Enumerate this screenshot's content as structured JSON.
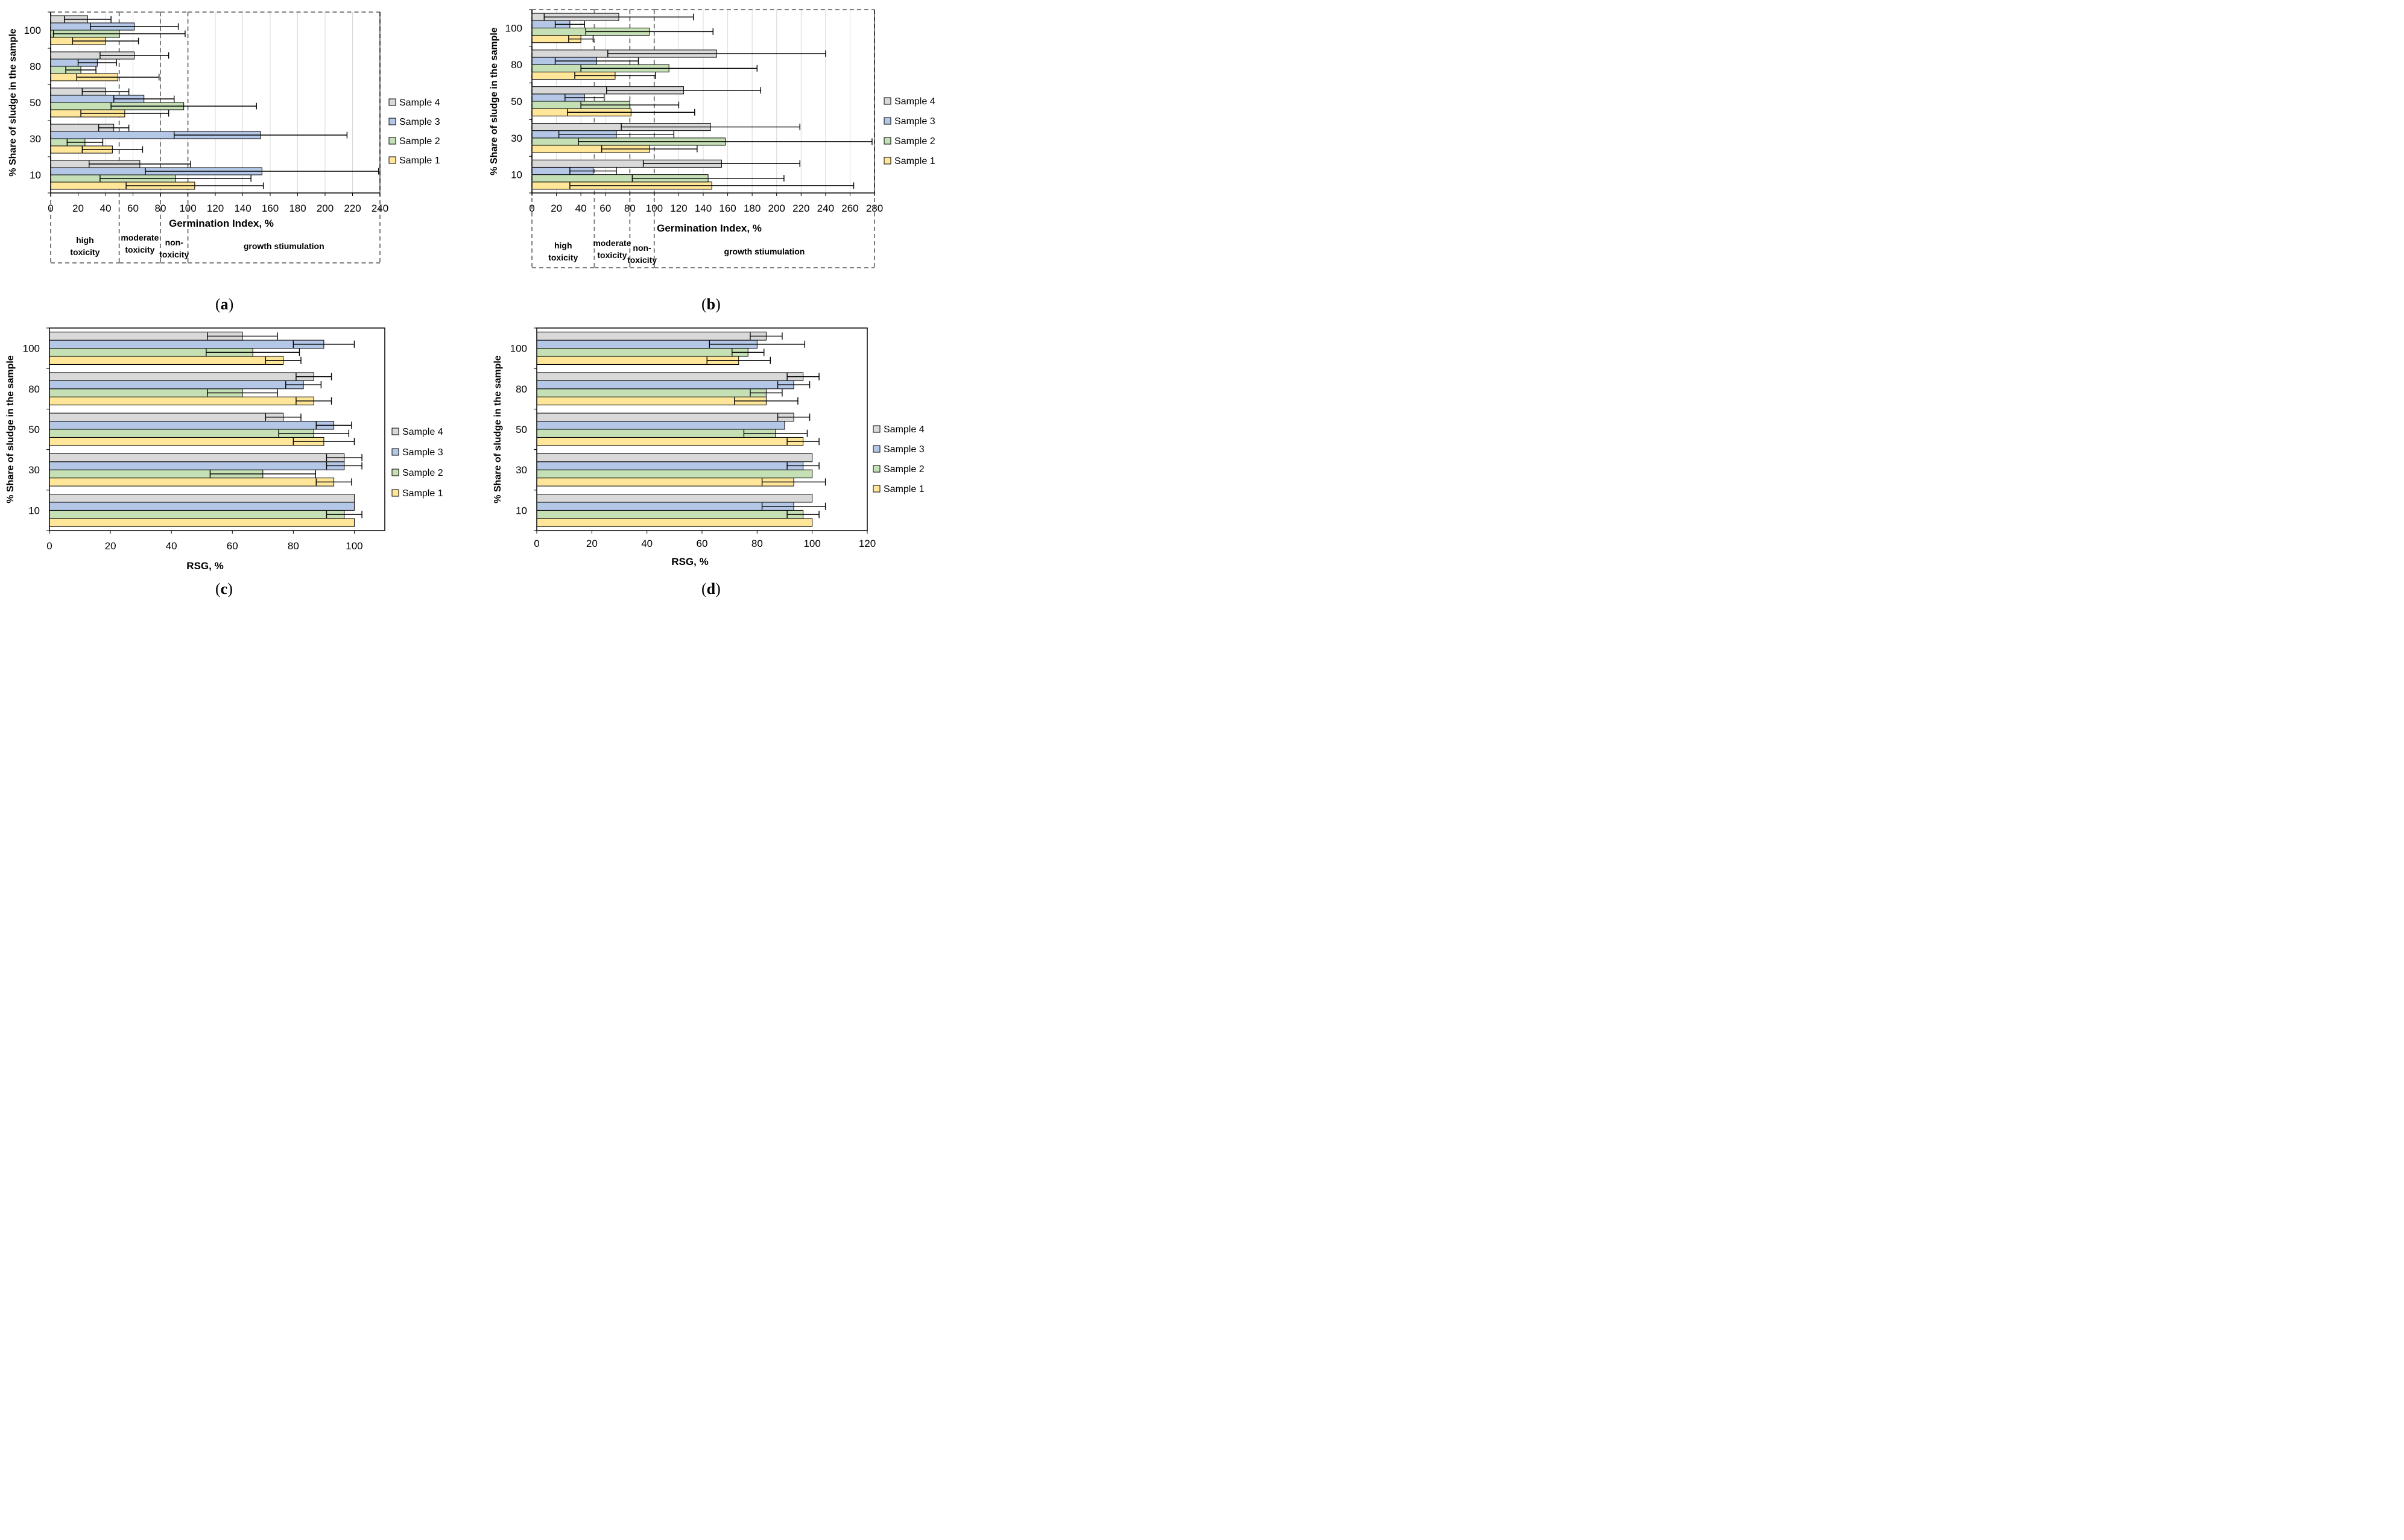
{
  "colors": {
    "sample1": "#FFE699",
    "sample2": "#C5E0B4",
    "sample3": "#B4C7E7",
    "sample4": "#D9D9D9",
    "stroke": "#000000",
    "grid": "#D9D9D9",
    "zone_border": "#7F7F7F"
  },
  "legend_labels": [
    "Sample 4",
    "Sample 3",
    "Sample 2",
    "Sample 1"
  ],
  "panels": [
    {
      "letter": "a",
      "open": "(",
      "close": ")"
    },
    {
      "letter": "b",
      "open": "(",
      "close": ")"
    },
    {
      "letter": "c",
      "open": "(",
      "close": ")"
    },
    {
      "letter": "d",
      "open": "(",
      "close": ")"
    }
  ],
  "chart_data": [
    {
      "type": "bar",
      "orientation": "horizontal",
      "panel": "a",
      "xlabel": "Germination Index, %",
      "ylabel": "% Share of sludge in the sample",
      "categories": [
        "10",
        "30",
        "50",
        "80",
        "100"
      ],
      "xlim": [
        0,
        240
      ],
      "xticks": [
        0,
        20,
        40,
        60,
        80,
        100,
        120,
        140,
        160,
        180,
        200,
        220,
        240
      ],
      "grid": true,
      "legend_position": "right",
      "zones": [
        {
          "label_lines": [
            "high",
            "toxicity"
          ],
          "from": 0,
          "to": 50
        },
        {
          "label_lines": [
            "moderate",
            "toxicity"
          ],
          "from": 50,
          "to": 80
        },
        {
          "label_lines": [
            "non-",
            "toxicity"
          ],
          "from": 80,
          "to": 100
        },
        {
          "label_lines": [
            "growth stiumulation"
          ],
          "from": 100,
          "to": 240
        }
      ],
      "series": [
        {
          "name": "Sample 1",
          "values": [
            105,
            45,
            54,
            49,
            40
          ],
          "errors": [
            50,
            22,
            32,
            30,
            24
          ]
        },
        {
          "name": "Sample 2",
          "values": [
            91,
            25,
            97,
            22,
            50
          ],
          "errors": [
            55,
            13,
            53,
            11,
            48
          ]
        },
        {
          "name": "Sample 3",
          "values": [
            154,
            153,
            68,
            34,
            61
          ],
          "errors": [
            85,
            63,
            22,
            14,
            32
          ]
        },
        {
          "name": "Sample 4",
          "values": [
            65,
            46,
            40,
            61,
            27
          ],
          "errors": [
            37,
            11,
            17,
            25,
            17
          ]
        }
      ]
    },
    {
      "type": "bar",
      "orientation": "horizontal",
      "panel": "b",
      "xlabel": "Germination Index, %",
      "ylabel": "% Share of sludge in the sample",
      "categories": [
        "10",
        "30",
        "50",
        "80",
        "100"
      ],
      "xlim": [
        0,
        280
      ],
      "xticks": [
        0,
        20,
        40,
        60,
        80,
        100,
        120,
        140,
        160,
        180,
        200,
        220,
        240,
        260,
        280
      ],
      "grid": true,
      "legend_position": "right",
      "zones": [
        {
          "label_lines": [
            "high",
            "toxicity"
          ],
          "from": 0,
          "to": 51
        },
        {
          "label_lines": [
            "moderate",
            "toxicity"
          ],
          "from": 51,
          "to": 80
        },
        {
          "label_lines": [
            "non-",
            "toxicity"
          ],
          "from": 80,
          "to": 100
        },
        {
          "label_lines": [
            "growth stiumulation"
          ],
          "from": 100,
          "to": 280
        }
      ],
      "series": [
        {
          "name": "Sample 1",
          "values": [
            147,
            96,
            81,
            68,
            40
          ],
          "errors": [
            116,
            39,
            52,
            33,
            10
          ]
        },
        {
          "name": "Sample 2",
          "values": [
            144,
            158,
            80,
            112,
            96
          ],
          "errors": [
            62,
            120,
            40,
            72,
            52
          ]
        },
        {
          "name": "Sample 3",
          "values": [
            50,
            69,
            43,
            53,
            31
          ],
          "errors": [
            19,
            47,
            16,
            34,
            12
          ]
        },
        {
          "name": "Sample 4",
          "values": [
            155,
            146,
            124,
            151,
            71
          ],
          "errors": [
            64,
            73,
            63,
            89,
            61
          ]
        }
      ]
    },
    {
      "type": "bar",
      "orientation": "horizontal",
      "panel": "c",
      "xlabel": "RSG, %",
      "ylabel": "% Share of sludge in the sample",
      "categories": [
        "10",
        "30",
        "50",
        "80",
        "100"
      ],
      "xlim": [
        0,
        110
      ],
      "xticks": [
        0,
        20,
        40,
        60,
        80,
        100
      ],
      "grid": false,
      "legend_position": "right",
      "series": [
        {
          "name": "Sample 1",
          "values": [
            100,
            93.3,
            90,
            86.7,
            76.7
          ],
          "errors": [
            0,
            5.8,
            10,
            5.8,
            5.8
          ]
        },
        {
          "name": "Sample 2",
          "values": [
            96.7,
            70,
            86.7,
            63.3,
            66.7
          ],
          "errors": [
            5.8,
            17.3,
            11.5,
            11.5,
            15.3
          ]
        },
        {
          "name": "Sample 3",
          "values": [
            100,
            96.7,
            93.3,
            83.3,
            90
          ],
          "errors": [
            0,
            5.8,
            5.8,
            5.8,
            10
          ]
        },
        {
          "name": "Sample 4",
          "values": [
            100,
            96.7,
            76.7,
            86.7,
            63.3
          ],
          "errors": [
            0,
            5.8,
            5.8,
            5.8,
            11.5
          ]
        }
      ]
    },
    {
      "type": "bar",
      "orientation": "horizontal",
      "panel": "d",
      "xlabel": "RSG, %",
      "ylabel": "% Share of sludge in the sample",
      "categories": [
        "10",
        "30",
        "50",
        "80",
        "100"
      ],
      "xlim": [
        0,
        120
      ],
      "xticks": [
        0,
        20,
        40,
        60,
        80,
        100,
        120
      ],
      "grid": false,
      "legend_position": "right",
      "series": [
        {
          "name": "Sample 1",
          "values": [
            100,
            93.3,
            96.7,
            83.3,
            73.3
          ],
          "errors": [
            0,
            11.5,
            5.8,
            11.5,
            11.5
          ]
        },
        {
          "name": "Sample 2",
          "values": [
            96.7,
            100,
            86.7,
            83.3,
            76.7
          ],
          "errors": [
            5.8,
            0,
            11.5,
            5.8,
            5.8
          ]
        },
        {
          "name": "Sample 3",
          "values": [
            93.3,
            96.7,
            90,
            93.3,
            80
          ],
          "errors": [
            11.5,
            5.8,
            0,
            5.8,
            17.3
          ]
        },
        {
          "name": "Sample 4",
          "values": [
            100,
            100,
            93.3,
            96.7,
            83.3
          ],
          "errors": [
            0,
            0,
            5.8,
            5.8,
            5.8
          ]
        }
      ]
    }
  ]
}
